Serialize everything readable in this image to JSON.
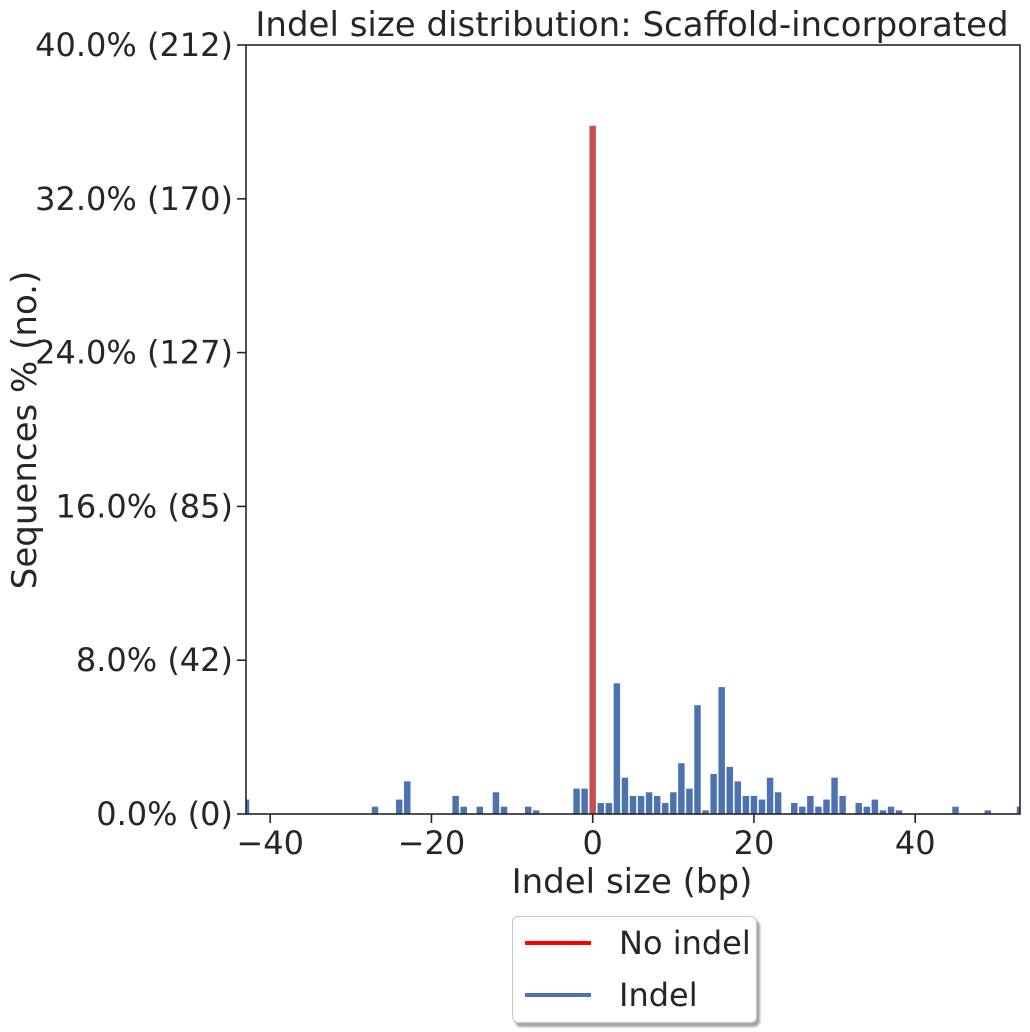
{
  "chart_data": {
    "type": "bar",
    "title": "Indel size distribution: Scaffold-incorporated",
    "xlabel": "Indel size (bp)",
    "ylabel": "Sequences % (no.)",
    "xlim": [
      -43,
      53
    ],
    "ylim": [
      0,
      40
    ],
    "grid": false,
    "legend_position": "below",
    "x_ticks": [
      {
        "value": -40,
        "label": "−40"
      },
      {
        "value": -20,
        "label": "−20"
      },
      {
        "value": 0,
        "label": "0"
      },
      {
        "value": 20,
        "label": "20"
      },
      {
        "value": 40,
        "label": "40"
      }
    ],
    "y_ticks": [
      {
        "value": 0,
        "label": "0.0% (0)"
      },
      {
        "value": 8,
        "label": "8.0% (42)"
      },
      {
        "value": 16,
        "label": "16.0% (85)"
      },
      {
        "value": 24,
        "label": "24.0% (127)"
      },
      {
        "value": 32,
        "label": "32.0% (170)"
      },
      {
        "value": 40,
        "label": "40.0% (212)"
      }
    ],
    "series": [
      {
        "name": "No indel",
        "color": "#c44e52",
        "legend_color": "#ff0000",
        "x": [
          0
        ],
        "values": [
          35.8
        ]
      },
      {
        "name": "Indel",
        "color": "#4c72b0",
        "legend_color": "#4c72b0",
        "x": [
          -43,
          -27,
          -24,
          -23,
          -17,
          -16,
          -14,
          -12,
          -11,
          -8,
          -7,
          -2,
          -1,
          1,
          2,
          3,
          4,
          5,
          6,
          7,
          8,
          9,
          10,
          11,
          12,
          13,
          14,
          15,
          16,
          17,
          18,
          19,
          20,
          21,
          22,
          23,
          25,
          26,
          27,
          28,
          29,
          30,
          31,
          33,
          34,
          35,
          36,
          37,
          38,
          45,
          49,
          53
        ],
        "values": [
          0.75,
          0.38,
          0.75,
          1.7,
          0.94,
          0.38,
          0.38,
          1.13,
          0.38,
          0.38,
          0.19,
          1.32,
          1.32,
          0.57,
          0.57,
          6.8,
          1.89,
          0.94,
          0.94,
          1.13,
          0.94,
          0.57,
          1.13,
          2.64,
          1.32,
          5.66,
          0.19,
          2.08,
          6.6,
          2.45,
          1.7,
          0.94,
          0.94,
          0.75,
          1.89,
          1.13,
          0.57,
          0.38,
          0.94,
          0.38,
          0.75,
          1.89,
          0.94,
          0.57,
          0.38,
          0.75,
          0.19,
          0.38,
          0.19,
          0.38,
          0.19,
          0.38
        ]
      }
    ]
  }
}
